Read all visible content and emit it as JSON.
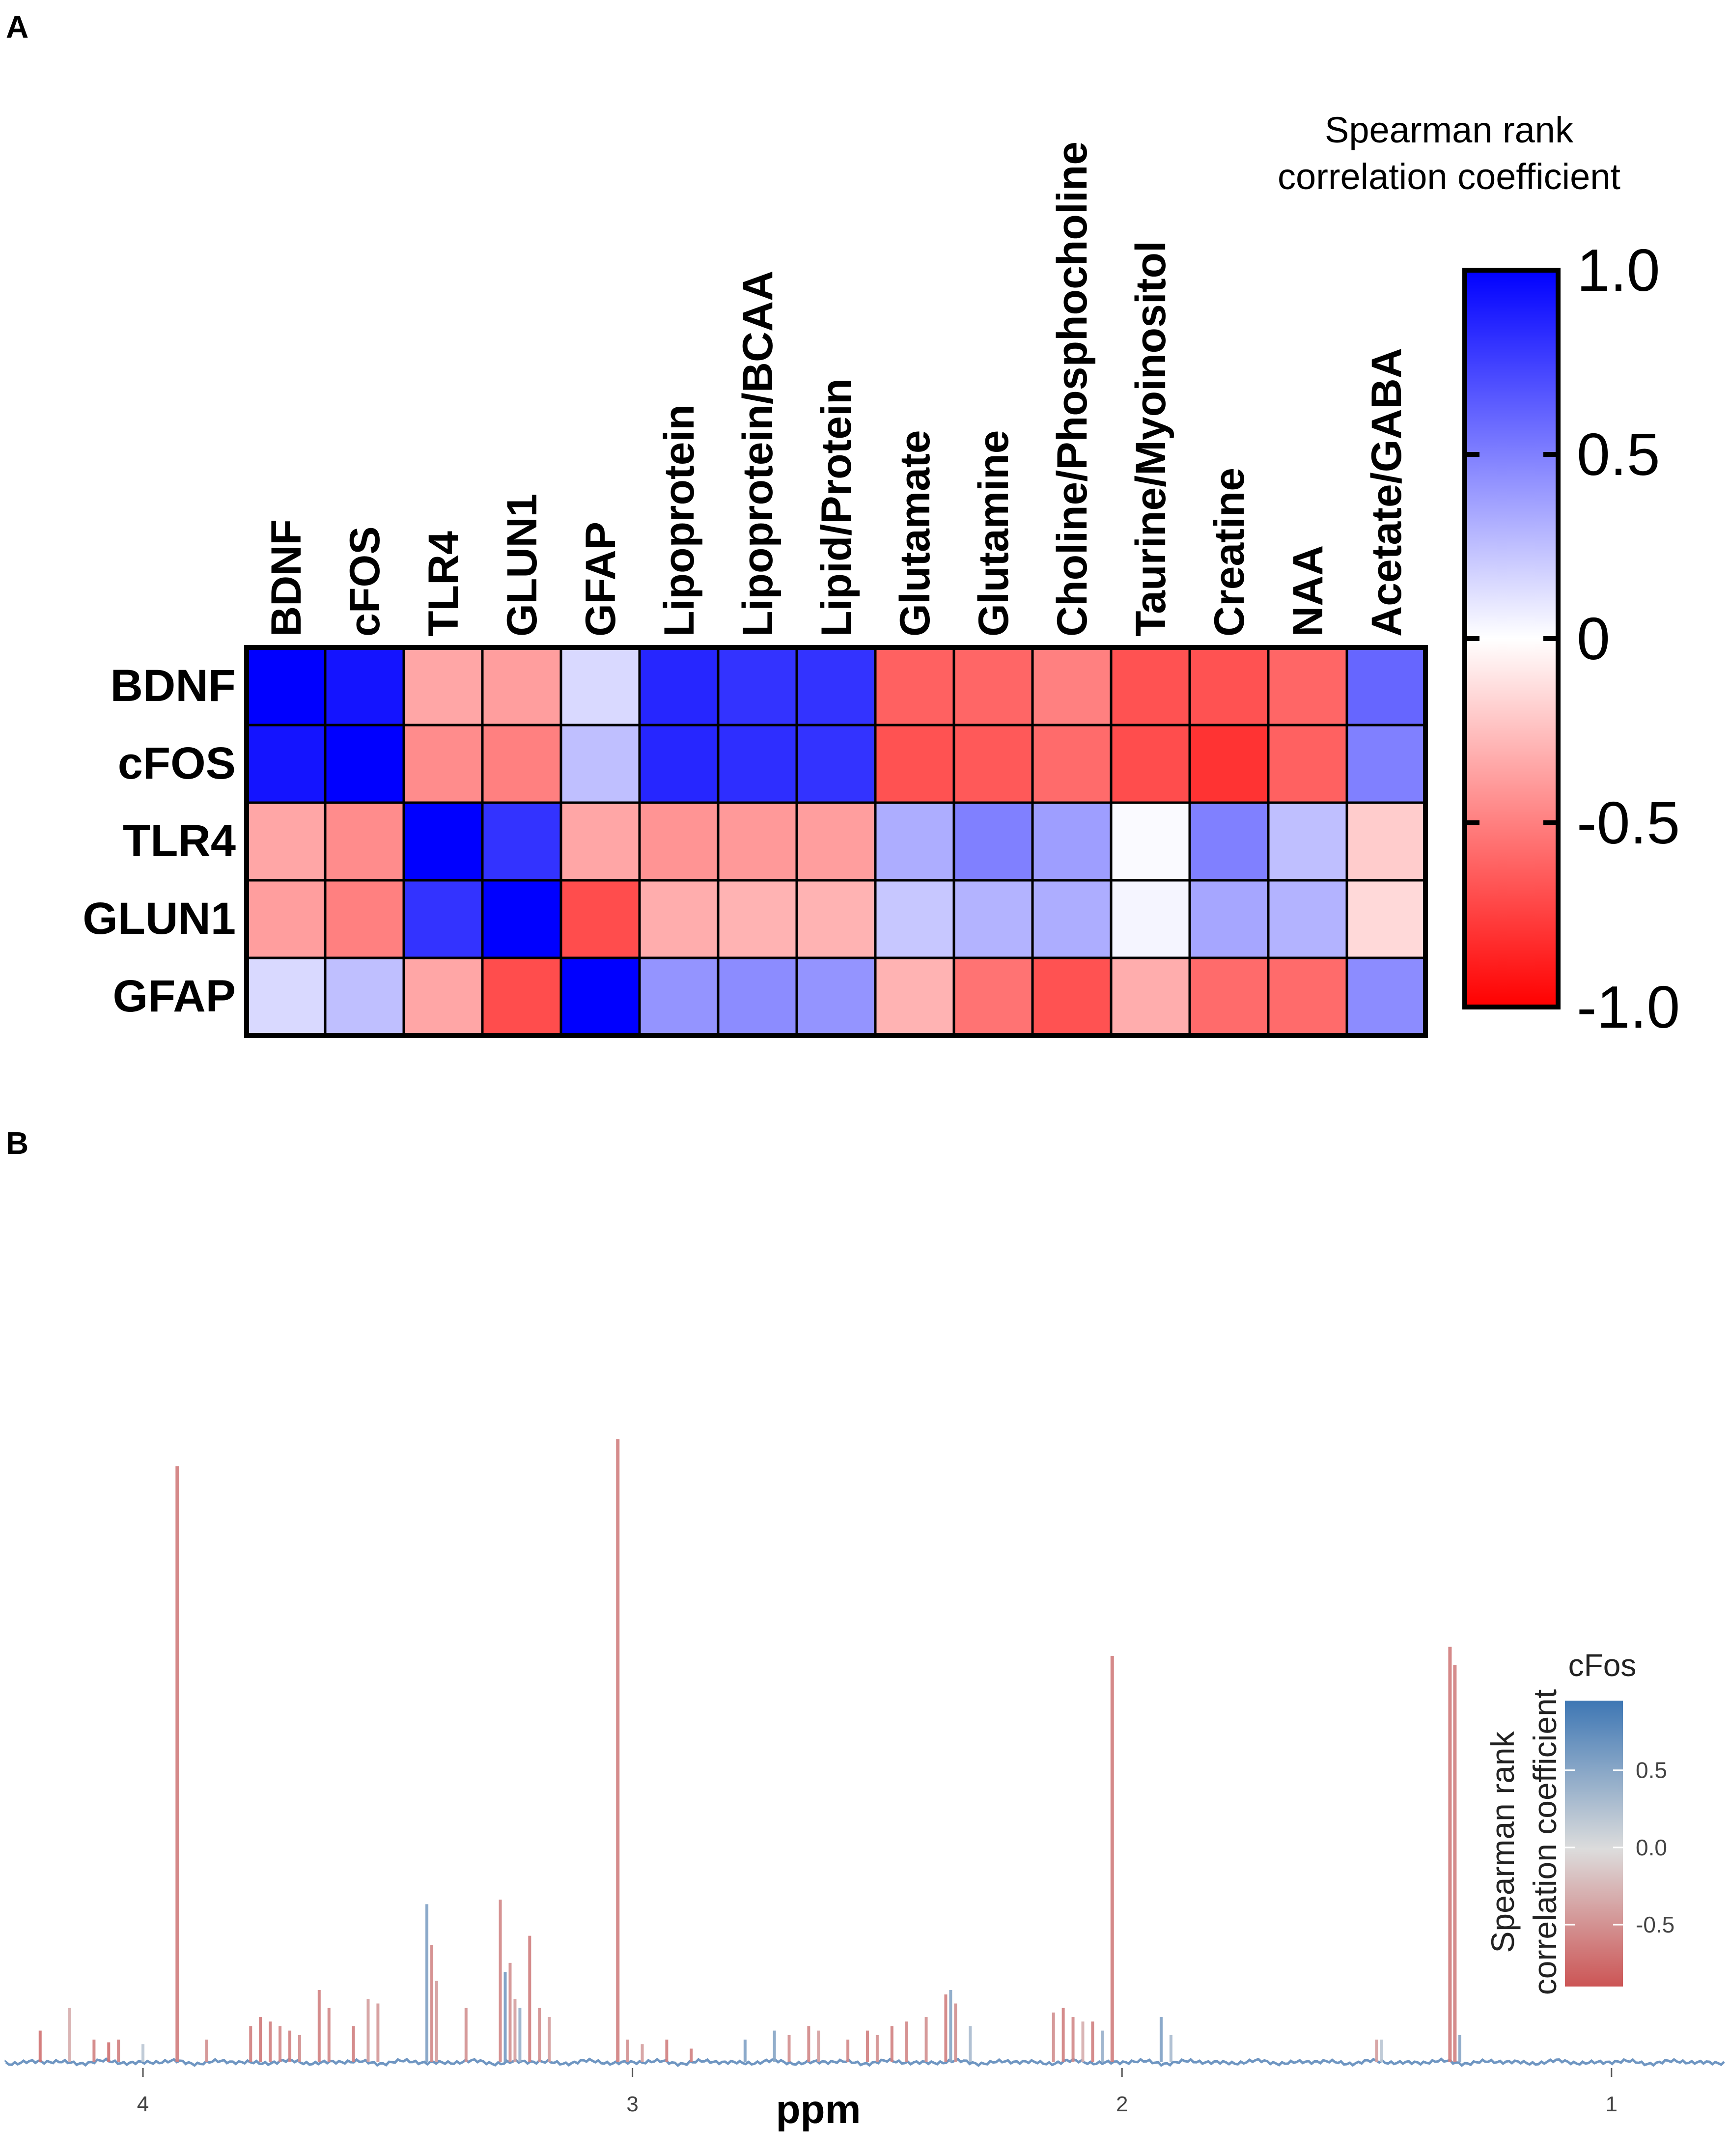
{
  "panel_a_label": "A",
  "panel_b_label": "B",
  "chart_data": [
    {
      "type": "heatmap",
      "title": "",
      "row_labels": [
        "BDNF",
        "cFOS",
        "TLR4",
        "GLUN1",
        "GFAP"
      ],
      "col_labels": [
        "BDNF",
        "cFOS",
        "TLR4",
        "GLUN1",
        "GFAP",
        "Lipoprotein",
        "Lipoprotein/BCAA",
        "Lipid/Protein",
        "Glutamate",
        "Glutamine",
        "Choline/Phosphocholine",
        "Taurine/Myoinositol",
        "Creatine",
        "NAA",
        "Acetate/GABA"
      ],
      "values": [
        [
          1.0,
          0.92,
          -0.35,
          -0.38,
          0.15,
          0.85,
          0.8,
          0.8,
          -0.62,
          -0.6,
          -0.5,
          -0.68,
          -0.68,
          -0.6,
          0.6
        ],
        [
          0.92,
          1.0,
          -0.45,
          -0.5,
          0.25,
          0.85,
          0.82,
          0.8,
          -0.68,
          -0.65,
          -0.58,
          -0.7,
          -0.8,
          -0.62,
          0.5
        ],
        [
          -0.35,
          -0.45,
          1.0,
          0.8,
          -0.35,
          -0.42,
          -0.4,
          -0.38,
          0.32,
          0.5,
          0.38,
          0.02,
          0.5,
          0.25,
          -0.2
        ],
        [
          -0.38,
          -0.5,
          0.8,
          1.0,
          -0.7,
          -0.32,
          -0.3,
          -0.3,
          0.22,
          0.3,
          0.32,
          0.04,
          0.35,
          0.3,
          -0.15
        ],
        [
          0.15,
          0.25,
          -0.35,
          -0.7,
          1.0,
          0.42,
          0.45,
          0.42,
          -0.3,
          -0.55,
          -0.68,
          -0.32,
          -0.58,
          -0.58,
          0.45
        ]
      ],
      "colorbar": {
        "title_line1": "Spearman rank",
        "title_line2": "correlation coefficient",
        "range": [
          -1.0,
          1.0
        ],
        "tick_labels": [
          "1.0",
          "0.5",
          "0",
          "-0.5",
          "-1.0"
        ],
        "tick_values": [
          1.0,
          0.5,
          0.0,
          -0.5,
          -1.0
        ],
        "color_max": "#0000ff",
        "color_mid": "#ffffff",
        "color_min": "#ff0000"
      }
    },
    {
      "type": "line",
      "title": "",
      "xlabel": "ppm",
      "x_reversed": true,
      "xlim": [
        4.28,
        0.77
      ],
      "ylim": [
        0,
        100
      ],
      "x_ticks": [
        4,
        3,
        2,
        1
      ],
      "x_tick_labels": [
        "4",
        "3",
        "2",
        "1"
      ],
      "baseline_color": "#6f96c2",
      "color_by": "correlation",
      "peaks": [
        {
          "ppm": 4.21,
          "height": 3.5,
          "r": -0.7
        },
        {
          "ppm": 4.15,
          "height": 6,
          "r": -0.3
        },
        {
          "ppm": 4.1,
          "height": 2.5,
          "r": -0.6
        },
        {
          "ppm": 4.07,
          "height": 2.2,
          "r": -0.7
        },
        {
          "ppm": 4.05,
          "height": 2.5,
          "r": -0.6
        },
        {
          "ppm": 4.0,
          "height": 2.0,
          "r": 0.2
        },
        {
          "ppm": 3.93,
          "height": 66,
          "r": -0.62
        },
        {
          "ppm": 3.87,
          "height": 2.5,
          "r": -0.5
        },
        {
          "ppm": 3.78,
          "height": 4,
          "r": -0.6
        },
        {
          "ppm": 3.76,
          "height": 5,
          "r": -0.65
        },
        {
          "ppm": 3.74,
          "height": 4.5,
          "r": -0.6
        },
        {
          "ppm": 3.72,
          "height": 4,
          "r": -0.55
        },
        {
          "ppm": 3.7,
          "height": 3.5,
          "r": -0.6
        },
        {
          "ppm": 3.68,
          "height": 3,
          "r": -0.5
        },
        {
          "ppm": 3.64,
          "height": 8,
          "r": -0.6
        },
        {
          "ppm": 3.62,
          "height": 6,
          "r": -0.55
        },
        {
          "ppm": 3.57,
          "height": 4,
          "r": -0.6
        },
        {
          "ppm": 3.54,
          "height": 7,
          "r": -0.4
        },
        {
          "ppm": 3.52,
          "height": 6.5,
          "r": -0.45
        },
        {
          "ppm": 3.42,
          "height": 17.5,
          "r": 0.55
        },
        {
          "ppm": 3.41,
          "height": 13,
          "r": -0.55
        },
        {
          "ppm": 3.4,
          "height": 9,
          "r": -0.4
        },
        {
          "ppm": 3.34,
          "height": 6,
          "r": -0.5
        },
        {
          "ppm": 3.27,
          "height": 18,
          "r": -0.55
        },
        {
          "ppm": 3.26,
          "height": 10,
          "r": 0.6
        },
        {
          "ppm": 3.25,
          "height": 11,
          "r": -0.5
        },
        {
          "ppm": 3.24,
          "height": 7,
          "r": -0.4
        },
        {
          "ppm": 3.23,
          "height": 6,
          "r": 0.4
        },
        {
          "ppm": 3.21,
          "height": 14,
          "r": -0.6
        },
        {
          "ppm": 3.19,
          "height": 6,
          "r": -0.5
        },
        {
          "ppm": 3.17,
          "height": 5,
          "r": -0.4
        },
        {
          "ppm": 3.03,
          "height": 69,
          "r": -0.6
        },
        {
          "ppm": 3.01,
          "height": 2.5,
          "r": -0.5
        },
        {
          "ppm": 2.98,
          "height": 2,
          "r": -0.4
        },
        {
          "ppm": 2.93,
          "height": 2.5,
          "r": -0.6
        },
        {
          "ppm": 2.88,
          "height": 1.5,
          "r": -0.6
        },
        {
          "ppm": 2.77,
          "height": 2.5,
          "r": 0.55
        },
        {
          "ppm": 2.71,
          "height": 3.5,
          "r": 0.5
        },
        {
          "ppm": 2.68,
          "height": 3,
          "r": -0.5
        },
        {
          "ppm": 2.64,
          "height": 4,
          "r": -0.55
        },
        {
          "ppm": 2.62,
          "height": 3.5,
          "r": -0.4
        },
        {
          "ppm": 2.56,
          "height": 2.5,
          "r": -0.55
        },
        {
          "ppm": 2.52,
          "height": 3.5,
          "r": -0.6
        },
        {
          "ppm": 2.5,
          "height": 3,
          "r": -0.5
        },
        {
          "ppm": 2.47,
          "height": 4,
          "r": -0.6
        },
        {
          "ppm": 2.44,
          "height": 4.5,
          "r": -0.55
        },
        {
          "ppm": 2.4,
          "height": 5,
          "r": -0.5
        },
        {
          "ppm": 2.36,
          "height": 7.5,
          "r": -0.6
        },
        {
          "ppm": 2.35,
          "height": 8,
          "r": 0.5
        },
        {
          "ppm": 2.34,
          "height": 6.5,
          "r": -0.5
        },
        {
          "ppm": 2.31,
          "height": 4,
          "r": 0.3
        },
        {
          "ppm": 2.14,
          "height": 5.5,
          "r": -0.5
        },
        {
          "ppm": 2.12,
          "height": 6,
          "r": -0.6
        },
        {
          "ppm": 2.1,
          "height": 5,
          "r": -0.55
        },
        {
          "ppm": 2.08,
          "height": 4.5,
          "r": -0.3
        },
        {
          "ppm": 2.06,
          "height": 4.5,
          "r": -0.6
        },
        {
          "ppm": 2.04,
          "height": 3.5,
          "r": 0.4
        },
        {
          "ppm": 2.02,
          "height": 45,
          "r": -0.62
        },
        {
          "ppm": 1.92,
          "height": 5,
          "r": 0.55
        },
        {
          "ppm": 1.9,
          "height": 3,
          "r": 0.3
        },
        {
          "ppm": 1.48,
          "height": 2.5,
          "r": -0.4
        },
        {
          "ppm": 1.47,
          "height": 2.5,
          "r": 0.2
        },
        {
          "ppm": 1.33,
          "height": 46,
          "r": -0.62
        },
        {
          "ppm": 1.32,
          "height": 44,
          "r": -0.6
        },
        {
          "ppm": 1.31,
          "height": 3,
          "r": 0.5
        }
      ],
      "colorbar": {
        "title": "cFos",
        "axis_title_line1": "Spearman rank",
        "axis_title_line2": "correlation coefficient",
        "range": [
          -0.9,
          0.95
        ],
        "tick_labels": [
          "0.5",
          "0.0",
          "-0.5"
        ],
        "tick_values": [
          0.5,
          0.0,
          -0.5
        ],
        "color_max": "#3e77b4",
        "color_mid": "#dcdcdc",
        "color_min": "#cc5555"
      }
    }
  ]
}
